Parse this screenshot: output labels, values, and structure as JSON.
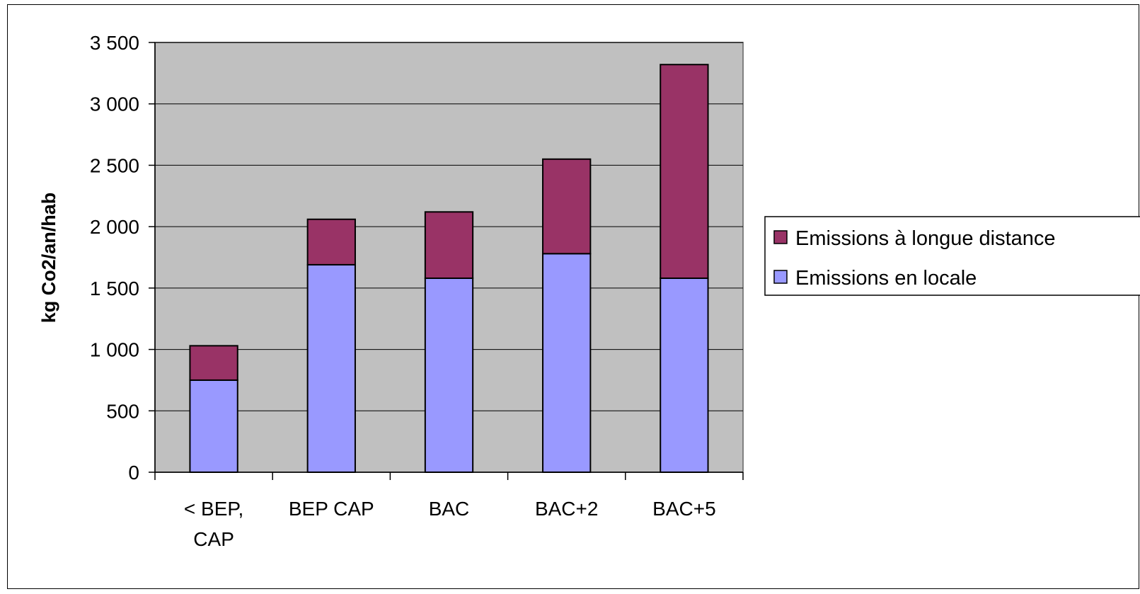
{
  "chart_data": {
    "type": "bar",
    "stacked": true,
    "categories": [
      "< BEP, CAP",
      "BEP CAP",
      "BAC",
      "BAC+2",
      "BAC+5"
    ],
    "category_lines": [
      [
        "< BEP,",
        "CAP"
      ],
      [
        "BEP CAP"
      ],
      [
        "BAC"
      ],
      [
        "BAC+2"
      ],
      [
        "BAC+5"
      ]
    ],
    "series": [
      {
        "name": "Emissions en locale",
        "color": "#9999ff",
        "values": [
          750,
          1690,
          1580,
          1780,
          1580
        ]
      },
      {
        "name": "Emissions à longue distance",
        "color": "#993366",
        "values": [
          280,
          370,
          540,
          770,
          1740
        ]
      }
    ],
    "legend_order": [
      1,
      0
    ],
    "ylabel": "kg Co2/an/hab",
    "ylim": [
      0,
      3500
    ],
    "yticks": [
      0,
      500,
      1000,
      1500,
      2000,
      2500,
      3000,
      3500
    ],
    "ytick_labels": [
      "0",
      "500",
      "1 000",
      "1 500",
      "2 000",
      "2 500",
      "3 000",
      "3 500"
    ],
    "grid": true,
    "plot_background": "#c0c0c0",
    "legend_position": "right"
  }
}
